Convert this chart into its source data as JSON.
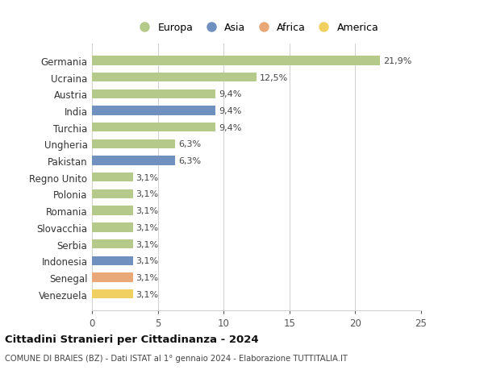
{
  "countries": [
    "Venezuela",
    "Senegal",
    "Indonesia",
    "Serbia",
    "Slovacchia",
    "Romania",
    "Polonia",
    "Regno Unito",
    "Pakistan",
    "Ungheria",
    "Turchia",
    "India",
    "Austria",
    "Ucraina",
    "Germania"
  ],
  "values": [
    3.1,
    3.1,
    3.1,
    3.1,
    3.1,
    3.1,
    3.1,
    3.1,
    6.3,
    6.3,
    9.4,
    9.4,
    9.4,
    12.5,
    21.9
  ],
  "labels": [
    "3,1%",
    "3,1%",
    "3,1%",
    "3,1%",
    "3,1%",
    "3,1%",
    "3,1%",
    "3,1%",
    "6,3%",
    "6,3%",
    "9,4%",
    "9,4%",
    "9,4%",
    "12,5%",
    "21,9%"
  ],
  "bar_colors": [
    "#f0d060",
    "#e8a878",
    "#7090c0",
    "#b5c98a",
    "#b5c98a",
    "#b5c98a",
    "#b5c98a",
    "#b5c98a",
    "#7090c0",
    "#b5c98a",
    "#b5c98a",
    "#7090c0",
    "#b5c98a",
    "#b5c98a",
    "#b5c98a"
  ],
  "colors": {
    "Europa": "#b5c98a",
    "Asia": "#7090c0",
    "Africa": "#e8a878",
    "America": "#f0d060"
  },
  "title": "Cittadini Stranieri per Cittadinanza - 2024",
  "subtitle": "COMUNE DI BRAIES (BZ) - Dati ISTAT al 1° gennaio 2024 - Elaborazione TUTTITALIA.IT",
  "xlim": [
    0,
    25
  ],
  "xticks": [
    0,
    5,
    10,
    15,
    20,
    25
  ],
  "legend_items": [
    "Europa",
    "Asia",
    "Africa",
    "America"
  ],
  "background_color": "#ffffff",
  "grid_color": "#d0d0d0"
}
